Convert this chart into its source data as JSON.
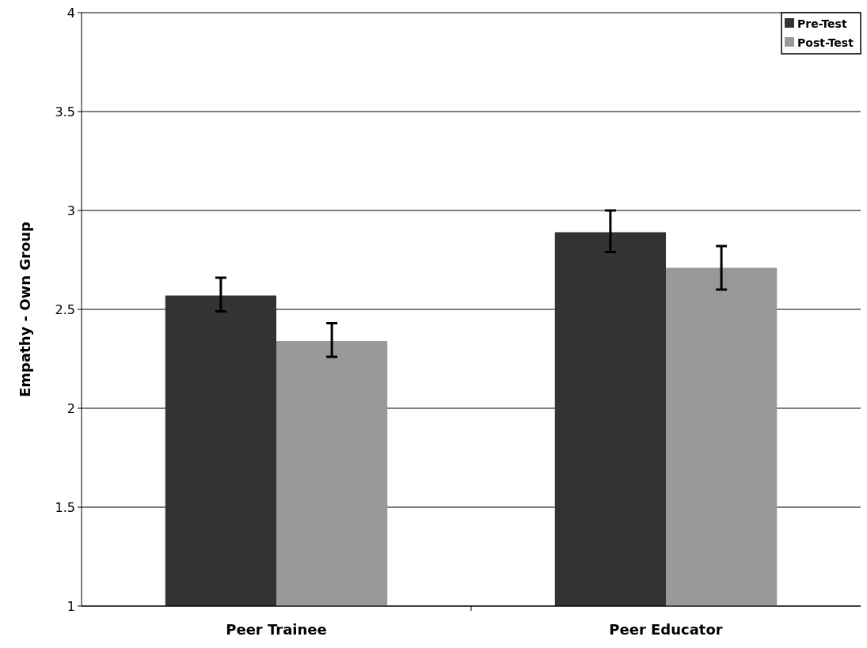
{
  "chart_data": {
    "type": "bar",
    "ylabel": "Empathy - Own Group",
    "categories": [
      "Peer Trainee",
      "Peer Educator"
    ],
    "series": [
      {
        "name": "Pre-Test",
        "color": "#333333",
        "values": [
          2.57,
          2.89
        ],
        "errors": [
          [
            2.49,
            2.66
          ],
          [
            2.79,
            3.0
          ]
        ]
      },
      {
        "name": "Post-Test",
        "color": "#999999",
        "values": [
          2.34,
          2.71
        ],
        "errors": [
          [
            2.26,
            2.43
          ],
          [
            2.6,
            2.82
          ]
        ]
      }
    ],
    "ylim": [
      1,
      4
    ],
    "yticks": [
      1,
      1.5,
      2,
      2.5,
      3,
      3.5,
      4
    ],
    "grid": "y",
    "legend": "top right"
  }
}
